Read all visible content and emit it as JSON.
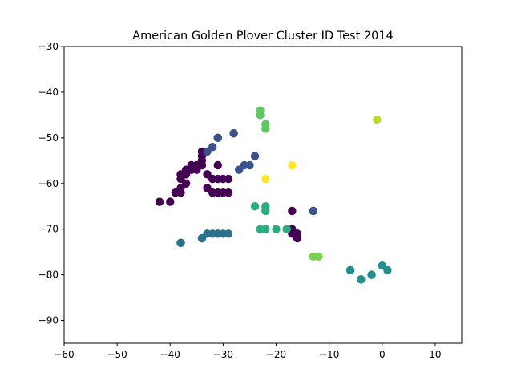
{
  "chart_data": {
    "type": "scatter",
    "title": "American Golden Plover Cluster ID Test 2014",
    "xlabel": "",
    "ylabel": "",
    "xlim": [
      -60,
      15
    ],
    "ylim": [
      -95,
      -30
    ],
    "xticks": [
      -60,
      -50,
      -40,
      -30,
      -20,
      -10,
      0,
      10
    ],
    "yticks": [
      -30,
      -40,
      -50,
      -60,
      -70,
      -80,
      -90
    ],
    "xtick_labels": [
      "−60",
      "−50",
      "−40",
      "−30",
      "−20",
      "−10",
      "0",
      "10"
    ],
    "ytick_labels": [
      "−30",
      "−40",
      "−50",
      "−60",
      "−70",
      "−80",
      "−90"
    ],
    "grid": false,
    "legend": "none",
    "series": [
      {
        "color": "#440154",
        "x": [
          -42,
          -40,
          -39,
          -38,
          -38,
          -38,
          -37,
          -37,
          -36,
          -36,
          -35,
          -35,
          -34,
          -34,
          -34,
          -34,
          -33,
          -33,
          -32,
          -32,
          -31,
          -31,
          -31,
          -31,
          -30,
          -30,
          -29,
          -29,
          -38,
          -37
        ],
        "y": [
          -64,
          -64,
          -62,
          -62,
          -61,
          -59,
          -58,
          -57,
          -57,
          -56,
          -56,
          -57,
          -53,
          -54,
          -55,
          -56,
          -58,
          -61,
          -59,
          -62,
          -62,
          -59,
          -56,
          -62,
          -59,
          -62,
          -59,
          -62,
          -58,
          -60
        ]
      },
      {
        "color": "#440154",
        "x": [
          -17,
          -18,
          -17,
          -16,
          -16,
          -17
        ],
        "y": [
          -66,
          -70,
          -70,
          -71,
          -72,
          -71
        ]
      },
      {
        "color": "#3b528b",
        "x": [
          -33,
          -32,
          -31,
          -31,
          -28,
          -28,
          -27,
          -26,
          -25,
          -24
        ],
        "y": [
          -53,
          -52,
          -50,
          -50,
          -49,
          -49,
          -57,
          -56,
          -56,
          -54
        ]
      },
      {
        "color": "#3b528b",
        "x": [
          -13,
          -13
        ],
        "y": [
          -66,
          -66
        ]
      },
      {
        "color": "#2c728e",
        "x": [
          -38,
          -38,
          -34,
          -34,
          -33,
          -32,
          -31,
          -30,
          -29
        ],
        "y": [
          -73,
          -73,
          -72,
          -72,
          -71,
          -71,
          -71,
          -71,
          -71
        ]
      },
      {
        "color": "#21918c",
        "x": [
          -6,
          -6,
          -4,
          -4,
          -2,
          -2,
          0,
          1
        ],
        "y": [
          -79,
          -79,
          -81,
          -81,
          -80,
          -80,
          -78,
          -79
        ]
      },
      {
        "color": "#28ae80",
        "x": [
          -24,
          -22,
          -22,
          -23,
          -22,
          -20,
          -18
        ],
        "y": [
          -65,
          -65,
          -66,
          -70,
          -70,
          -70,
          -70
        ]
      },
      {
        "color": "#5ec962",
        "x": [
          -23,
          -23,
          -22,
          -22
        ],
        "y": [
          -44,
          -45,
          -47,
          -48
        ]
      },
      {
        "color": "#7ad151",
        "x": [
          -13,
          -12
        ],
        "y": [
          -76,
          -76
        ]
      },
      {
        "color": "#b5de2b",
        "x": [
          -1
        ],
        "y": [
          -46
        ]
      },
      {
        "color": "#fde725",
        "x": [
          -22,
          -17
        ],
        "y": [
          -59,
          -56
        ]
      }
    ]
  }
}
